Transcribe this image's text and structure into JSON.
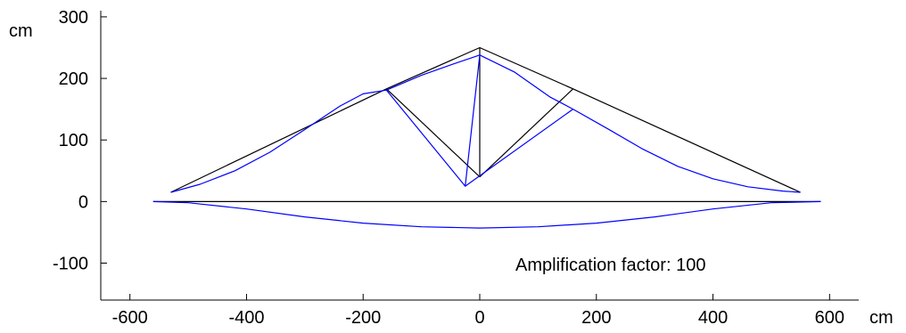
{
  "chart_data": {
    "type": "line",
    "title": "",
    "xlabel": "cm",
    "ylabel": "cm",
    "xlim": [
      -650,
      650
    ],
    "ylim": [
      -160,
      310
    ],
    "xticks": [
      -600,
      -400,
      -200,
      0,
      200,
      400,
      600
    ],
    "yticks": [
      -100,
      0,
      100,
      200,
      300
    ],
    "grid": false,
    "annotation": "Amplification factor: 100",
    "colors": {
      "undeformed": "#000000",
      "deformed": "#0000ff"
    },
    "series": [
      {
        "role": "undeformed-top-chord",
        "x": [
          -530,
          -160,
          0,
          160,
          550
        ],
        "y": [
          15,
          183,
          250,
          183,
          15
        ]
      },
      {
        "role": "undeformed-bottom-chord",
        "x": [
          -560,
          585
        ],
        "y": [
          0,
          0
        ]
      },
      {
        "role": "undeformed-web-left",
        "x": [
          -160,
          0
        ],
        "y": [
          183,
          40
        ]
      },
      {
        "role": "undeformed-web-center",
        "x": [
          0,
          0
        ],
        "y": [
          250,
          40
        ]
      },
      {
        "role": "undeformed-web-right",
        "x": [
          160,
          0
        ],
        "y": [
          183,
          40
        ]
      },
      {
        "role": "deformed-top-chord",
        "x": [
          -530,
          -480,
          -420,
          -360,
          -300,
          -240,
          -200,
          -160,
          -100,
          -50,
          0,
          60,
          120,
          160,
          220,
          280,
          340,
          400,
          460,
          520,
          550
        ],
        "y": [
          15,
          28,
          50,
          80,
          117,
          155,
          175,
          181,
          205,
          222,
          238,
          210,
          170,
          150,
          118,
          85,
          57,
          37,
          24,
          17,
          15
        ]
      },
      {
        "role": "deformed-web-left",
        "x": [
          -160,
          -25,
          0
        ],
        "y": [
          181,
          25,
          238
        ]
      },
      {
        "role": "deformed-web-right",
        "x": [
          160,
          -25
        ],
        "y": [
          150,
          25
        ]
      },
      {
        "role": "deformed-bottom-chord",
        "x": [
          -560,
          -500,
          -400,
          -300,
          -200,
          -100,
          0,
          100,
          200,
          300,
          400,
          500,
          585
        ],
        "y": [
          0,
          -2,
          -12,
          -25,
          -35,
          -41,
          -43,
          -41,
          -35,
          -25,
          -12,
          -2,
          0
        ]
      }
    ]
  }
}
